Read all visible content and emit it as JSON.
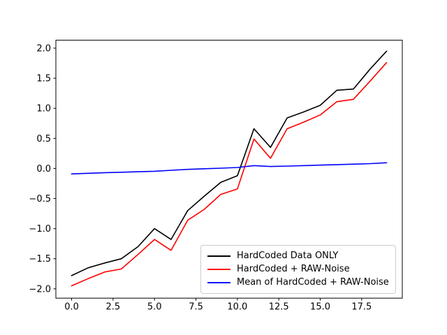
{
  "figure": {
    "background": "#ffffff",
    "title": ""
  },
  "chart_data": {
    "type": "line",
    "title": "",
    "xlabel": "",
    "ylabel": "",
    "grid": false,
    "x": [
      0,
      1,
      2,
      3,
      4,
      5,
      6,
      7,
      8,
      9,
      10,
      11,
      12,
      13,
      14,
      15,
      16,
      17,
      18,
      19
    ],
    "series": [
      {
        "name": "HardCoded Data ONLY",
        "color": "#000000",
        "values": [
          -1.78,
          -1.65,
          -1.57,
          -1.5,
          -1.3,
          -1.0,
          -1.18,
          -0.7,
          -0.46,
          -0.23,
          -0.12,
          0.66,
          0.35,
          0.84,
          0.94,
          1.05,
          1.3,
          1.32,
          1.65,
          1.95
        ]
      },
      {
        "name": "HardCoded + RAW-Noise",
        "color": "#ff0000",
        "values": [
          -1.95,
          -1.83,
          -1.72,
          -1.67,
          -1.43,
          -1.18,
          -1.36,
          -0.86,
          -0.68,
          -0.43,
          -0.34,
          0.49,
          0.17,
          0.66,
          0.77,
          0.89,
          1.11,
          1.15,
          1.45,
          1.76
        ]
      },
      {
        "name": "Mean of HardCoded + RAW-Noise",
        "color": "#0000ff",
        "values": [
          -0.09,
          -0.08,
          -0.07,
          -0.062,
          -0.054,
          -0.046,
          -0.03,
          -0.015,
          -0.005,
          0.005,
          0.016,
          0.048,
          0.032,
          0.04,
          0.048,
          0.056,
          0.064,
          0.072,
          0.08,
          0.095
        ]
      }
    ],
    "xlim": [
      -0.95,
      19.95
    ],
    "ylim": [
      -2.155,
      2.132
    ],
    "x_ticks": [
      0.0,
      2.5,
      5.0,
      7.5,
      10.0,
      12.5,
      15.0,
      17.5
    ],
    "x_tick_labels": [
      "0.0",
      "2.5",
      "5.0",
      "7.5",
      "10.0",
      "12.5",
      "15.0",
      "17.5"
    ],
    "y_ticks": [
      -2.0,
      -1.5,
      -1.0,
      -0.5,
      0.0,
      0.5,
      1.0,
      1.5,
      2.0
    ],
    "y_tick_labels": [
      "−2.0",
      "−1.5",
      "−1.0",
      "−0.5",
      "0.0",
      "0.5",
      "1.0",
      "1.5",
      "2.0"
    ],
    "legend": {
      "position": "lower right"
    },
    "axis_color": "#000000"
  }
}
